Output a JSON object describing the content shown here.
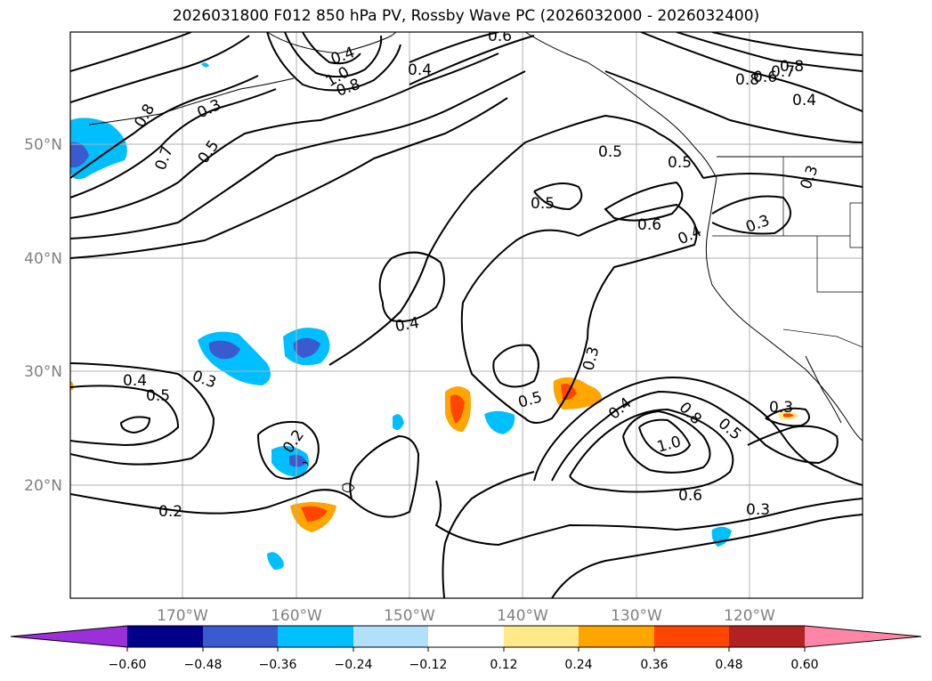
{
  "title": "2026031800 F012 850 hPa PV, Rossby Wave PC (2026032000 - 2026032400)",
  "map": {
    "lat_labels": [
      "50°N",
      "40°N",
      "30°N",
      "20°N"
    ],
    "lon_labels": [
      "170°W",
      "160°W",
      "150°W",
      "140°W",
      "130°W",
      "120°W"
    ],
    "contour_labels": [
      "0.8",
      "0.7",
      "0.5",
      "0.4",
      "1.0",
      "0.8",
      "0.6",
      "0.4",
      "0.8",
      "0.6",
      "0.7",
      "0.8",
      "0.4",
      "0.5",
      "0.5",
      "0.5",
      "0.6",
      "0.4",
      "0.3",
      "0.3",
      "0.4",
      "0.3",
      "0.4",
      "0.5",
      "0.3",
      "0.5",
      "0.2",
      "0.4",
      "0.8",
      "0.5",
      "1.0",
      "0.3",
      "0.6",
      "0.3",
      "0.2",
      "0.3"
    ],
    "colors": {
      "contour": "#000000",
      "grid": "#b0b0b0",
      "neg_outer": "#add8f7",
      "neg_mid": "#00bfff",
      "neg_inner": "#3a5bd0",
      "pos_outer": "#ffe98a",
      "pos_mid": "#ffa500",
      "pos_inner": "#ff4500"
    }
  },
  "colorbar": {
    "tick_labels": [
      "−0.60",
      "−0.48",
      "−0.36",
      "−0.24",
      "−0.12",
      "0.12",
      "0.24",
      "0.36",
      "0.48",
      "0.60"
    ],
    "segment_colors": [
      "#9b30d9",
      "#00008b",
      "#3a5bd0",
      "#00bfff",
      "#b0e0fa",
      "#ffffff",
      "#ffe98a",
      "#ffa500",
      "#ff4500",
      "#b22222",
      "#ff85a8"
    ]
  }
}
